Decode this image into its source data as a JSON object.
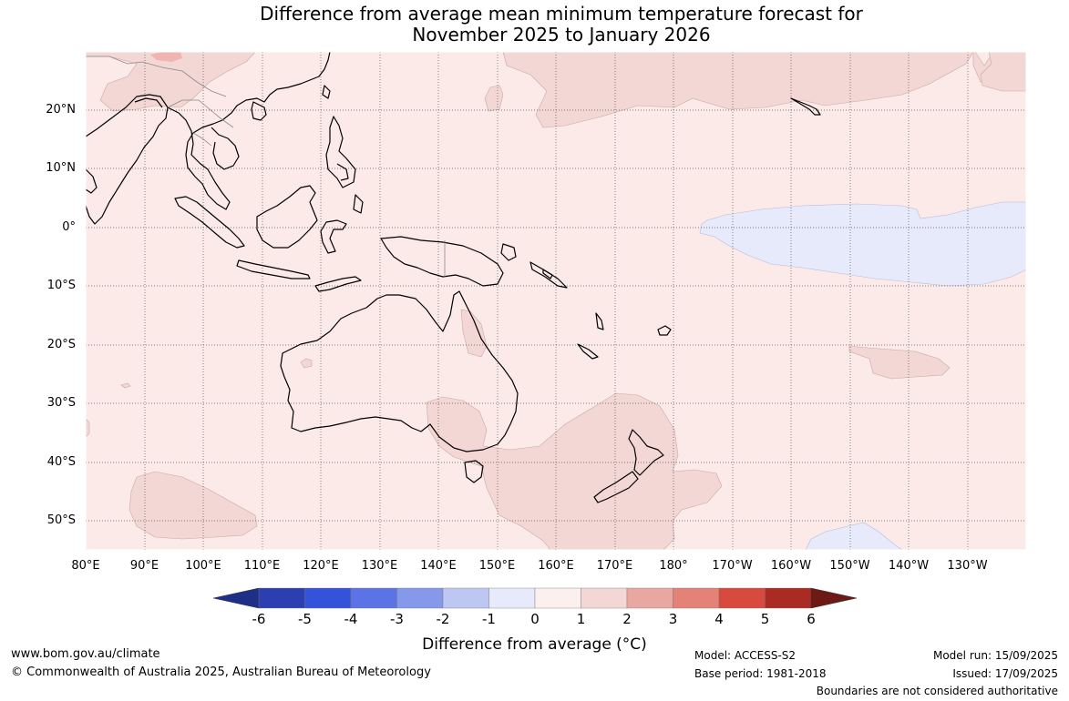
{
  "title": {
    "line1": "Difference from average mean minimum temperature forecast for",
    "line2": "November 2025 to January 2026"
  },
  "map": {
    "lat_labels": [
      "20°N",
      "10°N",
      "0°",
      "10°S",
      "20°S",
      "30°S",
      "40°S",
      "50°S"
    ],
    "lon_labels": [
      "80°E",
      "90°E",
      "100°E",
      "110°E",
      "120°E",
      "130°E",
      "140°E",
      "150°E",
      "160°E",
      "170°E",
      "180°",
      "170°W",
      "160°W",
      "150°W",
      "140°W",
      "130°W"
    ],
    "colors": {
      "ocean_0_1": "#fbeae8",
      "band_1_2": "#f3d7d4",
      "band_2_3": "#f0b5b0",
      "band_neg1_0": "#e7eafb",
      "coast": "#000000"
    }
  },
  "colorbar": {
    "ticks": [
      "-6",
      "-5",
      "-4",
      "-3",
      "-2",
      "-1",
      "0",
      "1",
      "2",
      "3",
      "4",
      "5",
      "6"
    ],
    "colors": [
      "#1f2f87",
      "#2c3fb0",
      "#3552db",
      "#5b73e5",
      "#8598ea",
      "#bec6f2",
      "#e7eafb",
      "#fcf0ee",
      "#f3d7d4",
      "#e9a7a1",
      "#e48278",
      "#d84a3e",
      "#a92b23",
      "#6e1a14"
    ],
    "label": "Difference from average (°C)"
  },
  "footer": {
    "website": "www.bom.gov.au/climate",
    "copyright": "© Commonwealth of Australia 2025, Australian Bureau of Meteorology",
    "model": "Model: ACCESS-S2",
    "base_period": "Base period: 1981-2018",
    "model_run": "Model run: 15/09/2025",
    "issued": "Issued: 17/09/2025",
    "disclaimer": "Boundaries are not considered authoritative"
  }
}
